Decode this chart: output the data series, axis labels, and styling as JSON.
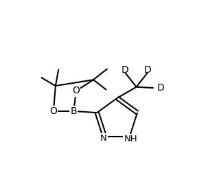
{
  "background_color": "#ffffff",
  "line_color": "#000000",
  "line_width": 1.5,
  "font_size": 10,
  "figsize": [
    3.0,
    2.71
  ],
  "dpi": 100,
  "xlim": [
    0,
    10
  ],
  "ylim": [
    0,
    9
  ]
}
